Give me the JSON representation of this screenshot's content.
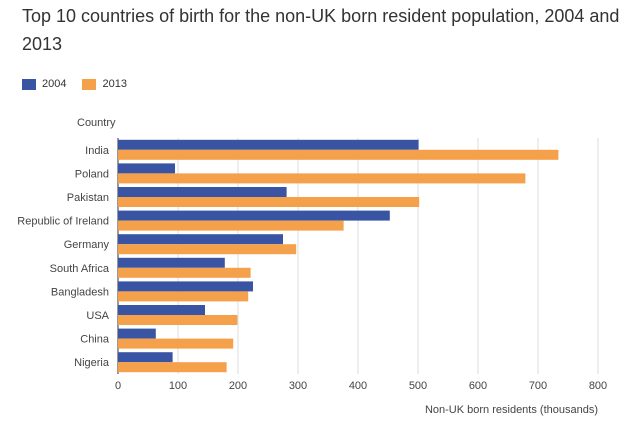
{
  "chart_data": {
    "type": "bar",
    "orientation": "horizontal",
    "title": "Top 10 countries of birth for the non-UK born resident population, 2004 and 2013",
    "ylabel": "Country",
    "xlabel": "Non-UK born residents (thousands)",
    "xlim": [
      0,
      800
    ],
    "xticks": [
      0,
      100,
      200,
      300,
      400,
      500,
      600,
      700,
      800
    ],
    "grid": true,
    "legend_position": "top-left",
    "categories": [
      "India",
      "Poland",
      "Pakistan",
      "Republic of Ireland",
      "Germany",
      "South Africa",
      "Bangladesh",
      "USA",
      "China",
      "Nigeria"
    ],
    "series": [
      {
        "name": "2004",
        "color": "#3a54a4",
        "values": [
          501,
          95,
          281,
          453,
          275,
          178,
          225,
          145,
          63,
          91
        ]
      },
      {
        "name": "2013",
        "color": "#f5a04a",
        "values": [
          734,
          679,
          502,
          376,
          297,
          221,
          217,
          199,
          192,
          181
        ]
      }
    ]
  }
}
